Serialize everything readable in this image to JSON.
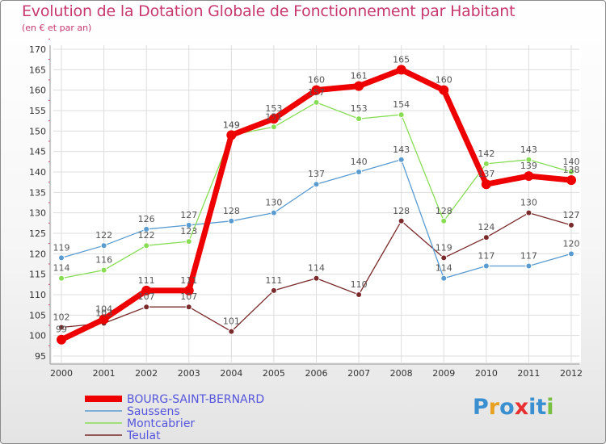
{
  "chart_data": {
    "type": "line",
    "title": "Evolution de la Dotation Globale de Fonctionnement par Habitant",
    "subtitle": "(en € et par an)",
    "xlabel": "",
    "ylabel": "",
    "ylim": [
      95,
      170
    ],
    "ytick_step": 5,
    "grid": true,
    "legend_position": "bottom-left",
    "x": [
      2000,
      2001,
      2002,
      2003,
      2004,
      2005,
      2006,
      2007,
      2008,
      2009,
      2010,
      2011,
      2012
    ],
    "series": [
      {
        "name": "Teulat",
        "color": "#7a2a2a",
        "values": [
          102,
          103,
          107,
          107,
          101,
          111,
          114,
          110,
          128,
          119,
          124,
          130,
          127
        ]
      },
      {
        "name": "Saussens",
        "color": "#5a9bd0",
        "values": [
          119,
          122,
          126,
          127,
          128,
          130,
          137,
          140,
          143,
          114,
          117,
          117,
          120
        ]
      },
      {
        "name": "Montcabrier",
        "color": "#88dd55",
        "values": [
          114,
          116,
          122,
          123,
          149,
          151,
          157,
          153,
          154,
          128,
          142,
          143,
          140
        ]
      },
      {
        "name": "BOURG-SAINT-BERNARD",
        "color": "#ee0000",
        "values": [
          99,
          104,
          111,
          111,
          149,
          153,
          160,
          161,
          165,
          160,
          137,
          139,
          138
        ]
      }
    ]
  },
  "legend_colors": {
    "BOURG-SAINT-BERNARD": "#5555dd",
    "Saussens": "#5555dd",
    "Montcabrier": "#5555dd",
    "Teulat": "#5555dd"
  },
  "logo": {
    "letters": [
      "P",
      "r",
      "o",
      "x",
      "i",
      "t",
      "i"
    ],
    "colors": [
      "#3a8fd0",
      "#e8a020",
      "#3a8fd0",
      "#e83030",
      "#3a8fd0",
      "#3a8fd0",
      "#7ac040"
    ]
  }
}
